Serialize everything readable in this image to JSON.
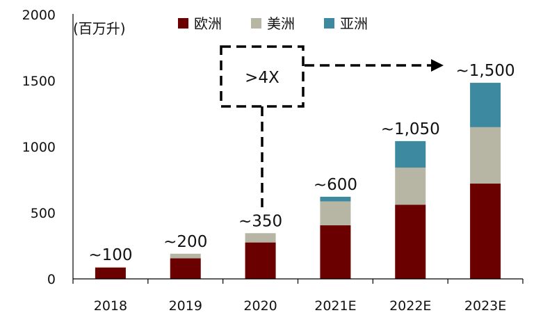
{
  "chart_data": {
    "type": "bar",
    "stacked": true,
    "unit_label": "(百万升)",
    "categories": [
      "2018",
      "2019",
      "2020",
      "2021E",
      "2022E",
      "2023E"
    ],
    "series": [
      {
        "name": "欧洲",
        "color": "#6b0000",
        "values": [
          85,
          155,
          275,
          405,
          560,
          720
        ]
      },
      {
        "name": "美洲",
        "color": "#b7b5a4",
        "values": [
          5,
          35,
          70,
          180,
          280,
          425
        ]
      },
      {
        "name": "亚洲",
        "color": "#3c89a0",
        "values": [
          0,
          0,
          0,
          35,
          200,
          335
        ]
      }
    ],
    "total_labels": [
      "~100",
      "~200",
      "~350",
      "~600",
      "~1,050",
      "~1,500"
    ],
    "y_ticks": [
      "0",
      "500",
      "1000",
      "1500",
      "2000"
    ],
    "ylim": [
      0,
      2000
    ],
    "legend_position": "top",
    "grid": false,
    "annotation": {
      "text": ">4X",
      "from_category": "2020",
      "to_category": "2023E"
    }
  }
}
